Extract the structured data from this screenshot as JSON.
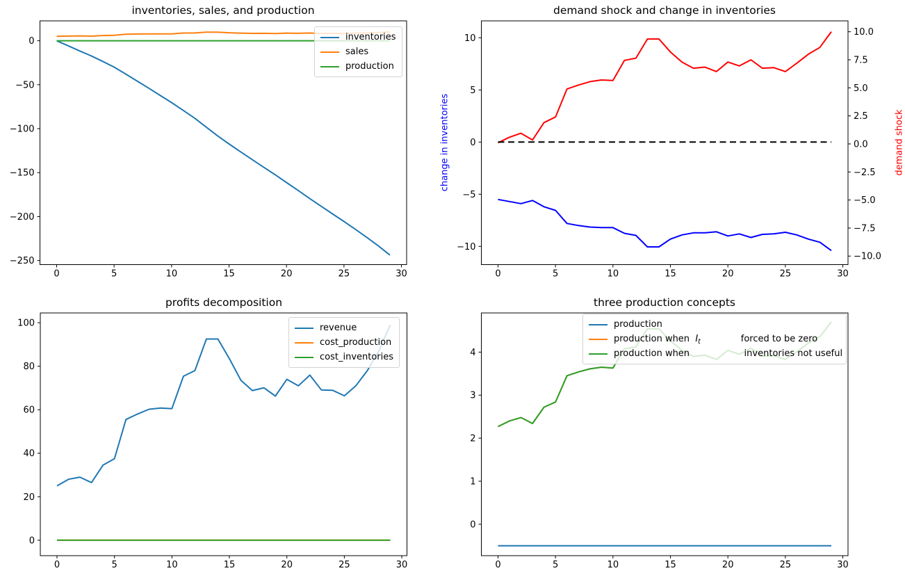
{
  "figure": {
    "background": "#ffffff",
    "text_color": "#000000"
  },
  "chart_data": [
    {
      "id": "inventories-sales-production",
      "type": "line",
      "title": "inventories, sales, and production",
      "xlabel": "",
      "ylabel": "",
      "grid": false,
      "xlim": [
        -1.45,
        30.45
      ],
      "ylim": [
        -254.6,
        22.6
      ],
      "x_tick_values": [
        0,
        5,
        10,
        15,
        20,
        25,
        30
      ],
      "x_tick_labels": [
        "0",
        "5",
        "10",
        "15",
        "20",
        "25",
        "30"
      ],
      "y_tick_values": [
        0,
        -50,
        -100,
        -150,
        -200,
        -250
      ],
      "y_tick_labels": [
        "0",
        "−50",
        "−100",
        "−150",
        "−200",
        "−250"
      ],
      "x": [
        0,
        1,
        2,
        3,
        4,
        5,
        6,
        7,
        8,
        9,
        10,
        11,
        12,
        13,
        14,
        15,
        16,
        17,
        18,
        19,
        20,
        21,
        22,
        23,
        24,
        25,
        26,
        27,
        28,
        29
      ],
      "series": [
        {
          "name": "inventories",
          "color": "#1f77b4",
          "axis": "left",
          "values": [
            0,
            -5.7,
            -11.6,
            -17.2,
            -23.4,
            -30,
            -37.8,
            -45.8,
            -53.9,
            -62.1,
            -70.3,
            -79.1,
            -88,
            -98.1,
            -108.1,
            -117.4,
            -126.3,
            -135,
            -143.7,
            -152.3,
            -161.3,
            -170.1,
            -179.3,
            -188.1,
            -196.9,
            -205.6,
            -214.5,
            -223.8,
            -233.4,
            -243.8
          ]
        },
        {
          "name": "sales",
          "color": "#ff7f0e",
          "axis": "left",
          "values": [
            5.05,
            5.3,
            5.48,
            5.18,
            5.95,
            6.2,
            7.45,
            7.63,
            7.78,
            7.85,
            7.83,
            8.73,
            8.83,
            9.68,
            9.68,
            9.1,
            8.65,
            8.38,
            8.43,
            8.23,
            8.65,
            8.48,
            8.75,
            8.38,
            8.4,
            8.23,
            8.6,
            9,
            9.3,
            10
          ]
        },
        {
          "name": "production",
          "color": "#2ca02c",
          "axis": "left",
          "values": [
            0,
            0,
            0,
            0,
            0,
            0,
            0,
            0,
            0,
            0,
            0,
            0,
            0,
            0,
            0,
            0,
            0,
            0,
            0,
            0,
            0,
            0,
            0,
            0,
            0,
            0,
            0,
            0,
            0,
            0
          ]
        }
      ],
      "legend_location": "upper right",
      "legend_entries": [
        {
          "color": "#1f77b4",
          "parts": [
            {
              "text": "inventories"
            }
          ]
        },
        {
          "color": "#ff7f0e",
          "parts": [
            {
              "text": "sales"
            }
          ]
        },
        {
          "color": "#2ca02c",
          "parts": [
            {
              "text": "production"
            }
          ]
        }
      ]
    },
    {
      "id": "demand-shock-change-inventories",
      "type": "line",
      "title": "demand shock and change in inventories",
      "xlabel": "",
      "grid": false,
      "ylabel_left": {
        "text": "change in inventories",
        "color": "#0000ff"
      },
      "ylabel_right": {
        "text": "demand shock",
        "color": "#ff0000"
      },
      "xlim": [
        -1.45,
        30.45
      ],
      "ylim": [
        -11.75,
        11.62
      ],
      "ylim_right": [
        -10.76,
        10.97
      ],
      "x_tick_values": [
        0,
        5,
        10,
        15,
        20,
        25,
        30
      ],
      "x_tick_labels": [
        "0",
        "5",
        "10",
        "15",
        "20",
        "25",
        "30"
      ],
      "y_tick_values": [
        10,
        5,
        0,
        -5,
        -10
      ],
      "y_tick_labels": [
        "10",
        "5",
        "0",
        "−5",
        "−10"
      ],
      "y_right_tick_values": [
        10,
        7.5,
        5,
        2.5,
        0,
        -2.5,
        -5,
        -7.5,
        -10
      ],
      "y_right_tick_labels": [
        "10.0",
        "7.5",
        "5.0",
        "2.5",
        "0.0",
        "−2.5",
        "−5.0",
        "−7.5",
        "−10.0"
      ],
      "x": [
        0,
        1,
        2,
        3,
        4,
        5,
        6,
        7,
        8,
        9,
        10,
        11,
        12,
        13,
        14,
        15,
        16,
        17,
        18,
        19,
        20,
        21,
        22,
        23,
        24,
        25,
        26,
        27,
        28,
        29
      ],
      "series": [
        {
          "name": "change in inventories",
          "color": "#0000ff",
          "axis": "left",
          "values": [
            -5.5,
            -5.7,
            -5.9,
            -5.6,
            -6.2,
            -6.55,
            -7.8,
            -8,
            -8.15,
            -8.2,
            -8.2,
            -8.75,
            -8.95,
            -10.05,
            -10.05,
            -9.3,
            -8.9,
            -8.7,
            -8.7,
            -8.6,
            -9,
            -8.8,
            -9.15,
            -8.85,
            -8.8,
            -8.65,
            -8.9,
            -9.3,
            -9.6,
            -10.4
          ]
        },
        {
          "name": "demand shock",
          "color": "#ff0000",
          "axis": "right",
          "values": [
            0.1,
            0.6,
            0.95,
            0.35,
            1.9,
            2.4,
            4.9,
            5.25,
            5.55,
            5.7,
            5.65,
            7.45,
            7.65,
            9.35,
            9.35,
            8.2,
            7.3,
            6.75,
            6.85,
            6.45,
            7.3,
            6.95,
            7.5,
            6.75,
            6.8,
            6.45,
            7.2,
            8,
            8.6,
            10
          ]
        },
        {
          "name": "zero line",
          "color": "#000000",
          "axis": "left",
          "dashed": true,
          "values": [
            0,
            0,
            0,
            0,
            0,
            0,
            0,
            0,
            0,
            0,
            0,
            0,
            0,
            0,
            0,
            0,
            0,
            0,
            0,
            0,
            0,
            0,
            0,
            0,
            0,
            0,
            0,
            0,
            0,
            0
          ]
        }
      ],
      "legend_entries": []
    },
    {
      "id": "profits-decomposition",
      "type": "line",
      "title": "profits decomposition",
      "xlabel": "",
      "ylabel": "",
      "grid": false,
      "xlim": [
        -1.45,
        30.45
      ],
      "ylim": [
        -7.1,
        104.5
      ],
      "x_tick_values": [
        0,
        5,
        10,
        15,
        20,
        25,
        30
      ],
      "x_tick_labels": [
        "0",
        "5",
        "10",
        "15",
        "20",
        "25",
        "30"
      ],
      "y_tick_values": [
        0,
        20,
        40,
        60,
        80,
        100
      ],
      "y_tick_labels": [
        "0",
        "20",
        "40",
        "60",
        "80",
        "100"
      ],
      "x": [
        0,
        1,
        2,
        3,
        4,
        5,
        6,
        7,
        8,
        9,
        10,
        11,
        12,
        13,
        14,
        15,
        16,
        17,
        18,
        19,
        20,
        21,
        22,
        23,
        24,
        25,
        26,
        27,
        28,
        29
      ],
      "series": [
        {
          "name": "revenue",
          "color": "#1f77b4",
          "axis": "left",
          "values": [
            25,
            28,
            29,
            26.5,
            34.5,
            37.5,
            55.5,
            58,
            60.2,
            60.8,
            60.5,
            75.4,
            78,
            92.5,
            92.5,
            83.5,
            73.5,
            68.8,
            70.1,
            66.3,
            74,
            71,
            75.9,
            69.1,
            68.9,
            66.4,
            71,
            78,
            87,
            99
          ]
        },
        {
          "name": "cost_production",
          "color": "#ff7f0e",
          "axis": "left",
          "values": [
            0,
            0,
            0,
            0,
            0,
            0,
            0,
            0,
            0,
            0,
            0,
            0,
            0,
            0,
            0,
            0,
            0,
            0,
            0,
            0,
            0,
            0,
            0,
            0,
            0,
            0,
            0,
            0,
            0,
            0
          ]
        },
        {
          "name": "cost_inventories",
          "color": "#2ca02c",
          "axis": "left",
          "values": [
            0,
            0,
            0,
            0,
            0,
            0,
            0,
            0,
            0,
            0,
            0,
            0,
            0,
            0,
            0,
            0,
            0,
            0,
            0,
            0,
            0,
            0,
            0,
            0,
            0,
            0,
            0,
            0,
            0,
            0
          ]
        }
      ],
      "legend_location": "upper right",
      "legend_entries": [
        {
          "color": "#1f77b4",
          "parts": [
            {
              "text": "revenue"
            }
          ]
        },
        {
          "color": "#ff7f0e",
          "parts": [
            {
              "text": "cost_production"
            }
          ]
        },
        {
          "color": "#2ca02c",
          "parts": [
            {
              "text": "cost_inventories"
            }
          ]
        }
      ]
    },
    {
      "id": "three-production-concepts",
      "type": "line",
      "title": "three production concepts",
      "xlabel": "",
      "ylabel": "",
      "grid": false,
      "xlim": [
        -1.45,
        30.45
      ],
      "ylim": [
        -0.73,
        4.91
      ],
      "x_tick_values": [
        0,
        5,
        10,
        15,
        20,
        25,
        30
      ],
      "x_tick_labels": [
        "0",
        "5",
        "10",
        "15",
        "20",
        "25",
        "30"
      ],
      "y_tick_values": [
        0,
        1,
        2,
        3,
        4
      ],
      "y_tick_labels": [
        "0",
        "1",
        "2",
        "3",
        "4"
      ],
      "x": [
        0,
        1,
        2,
        3,
        4,
        5,
        6,
        7,
        8,
        9,
        10,
        11,
        12,
        13,
        14,
        15,
        16,
        17,
        18,
        19,
        20,
        21,
        22,
        23,
        24,
        25,
        26,
        27,
        28,
        29
      ],
      "series": [
        {
          "name": "production",
          "color": "#1f77b4",
          "axis": "left",
          "values": [
            -0.5,
            -0.5,
            -0.5,
            -0.5,
            -0.5,
            -0.5,
            -0.5,
            -0.5,
            -0.5,
            -0.5,
            -0.5,
            -0.5,
            -0.5,
            -0.5,
            -0.5,
            -0.5,
            -0.5,
            -0.5,
            -0.5,
            -0.5,
            -0.5,
            -0.5,
            -0.5,
            -0.5,
            -0.5,
            -0.5,
            -0.5,
            -0.5,
            -0.5,
            -0.5
          ]
        },
        {
          "name": "production when I_t forced to be zero",
          "color": "#ff7f0e",
          "axis": "left",
          "values": [
            2.27,
            2.4,
            2.48,
            2.34,
            2.72,
            2.84,
            3.45,
            3.54,
            3.61,
            3.65,
            3.63,
            4.08,
            4.12,
            4.54,
            4.54,
            4.26,
            4.04,
            3.9,
            3.93,
            3.83,
            4.04,
            3.95,
            4.09,
            3.9,
            3.92,
            3.83,
            4.01,
            4.21,
            4.36,
            4.7
          ]
        },
        {
          "name": "production when inventories not useful",
          "color": "#2ca02c",
          "axis": "left",
          "values": [
            2.27,
            2.4,
            2.48,
            2.34,
            2.72,
            2.84,
            3.45,
            3.54,
            3.61,
            3.65,
            3.63,
            4.08,
            4.12,
            4.54,
            4.54,
            4.26,
            4.04,
            3.9,
            3.93,
            3.83,
            4.04,
            3.95,
            4.09,
            3.9,
            3.92,
            3.83,
            4.01,
            4.21,
            4.36,
            4.7
          ]
        }
      ],
      "legend_location": "upper right",
      "legend_entries": [
        {
          "color": "#1f77b4",
          "parts": [
            {
              "text": "production"
            }
          ]
        },
        {
          "color": "#ff7f0e",
          "parts": [
            {
              "text": "production when  "
            },
            {
              "text": "I",
              "italic": true
            },
            {
              "text": "t",
              "italic": true,
              "subscript": true
            },
            {
              "text": "              forced to be zero"
            }
          ]
        },
        {
          "color": "#2ca02c",
          "parts": [
            {
              "text": "production when                   inventories not useful"
            }
          ]
        }
      ]
    }
  ]
}
